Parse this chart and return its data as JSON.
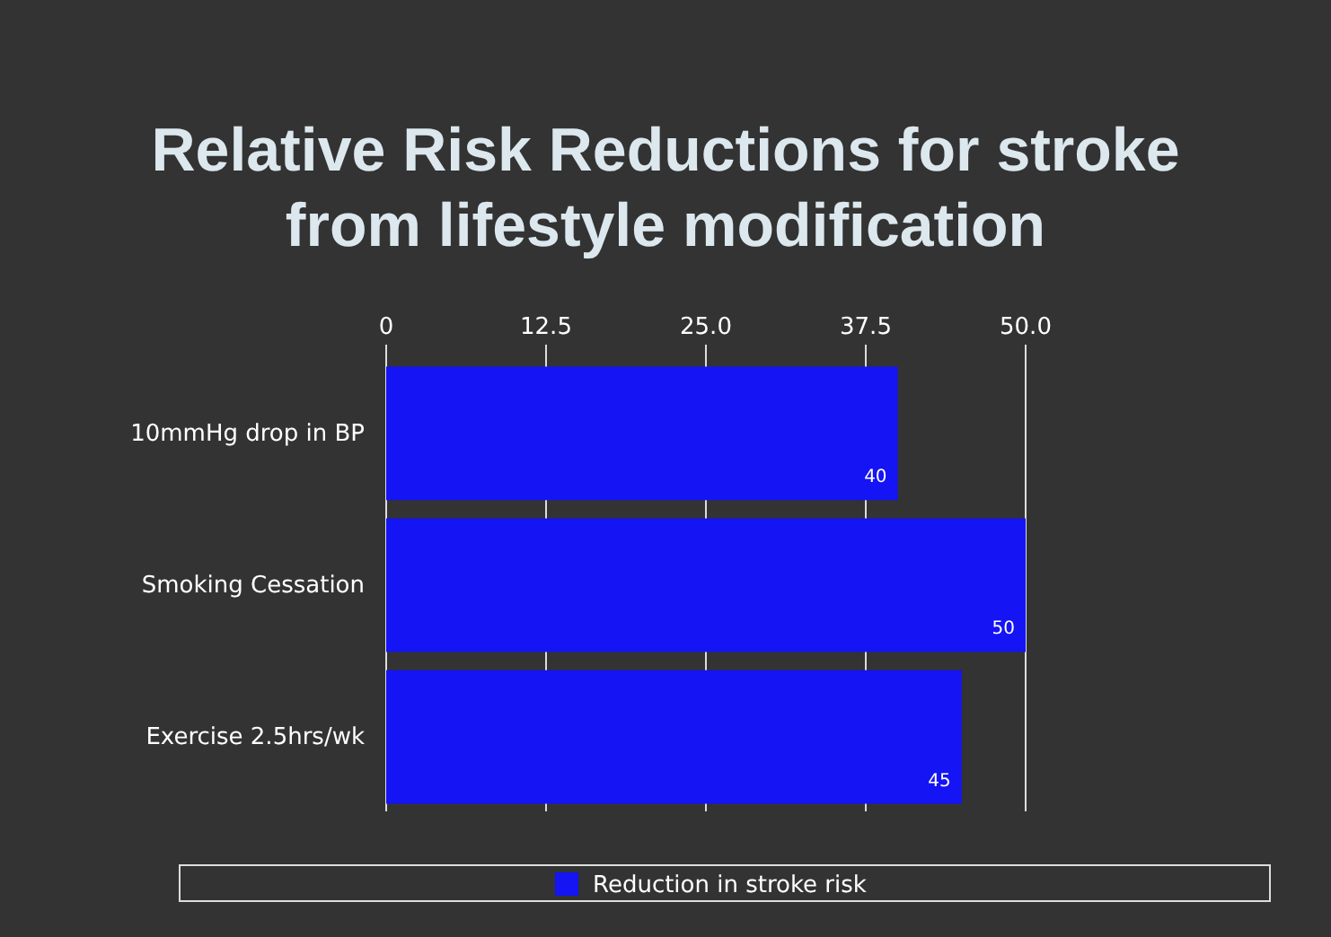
{
  "chart_data": {
    "type": "bar",
    "orientation": "horizontal",
    "title": "Relative Risk Reductions for stroke from lifestyle modification",
    "categories": [
      "10mmHg drop in BP",
      "Smoking Cessation",
      "Exercise 2.5hrs/wk"
    ],
    "series": [
      {
        "name": "Reduction in stroke risk",
        "color": "#1414f5",
        "values": [
          40,
          50,
          45
        ]
      }
    ],
    "xlim": [
      0,
      50
    ],
    "xticks": [
      0,
      12.5,
      {
        "value": 25,
        "label": "25.0"
      },
      37.5,
      {
        "value": 50,
        "label": "50.0"
      }
    ],
    "grid": "x",
    "data_labels": true,
    "legend": "bottom"
  }
}
